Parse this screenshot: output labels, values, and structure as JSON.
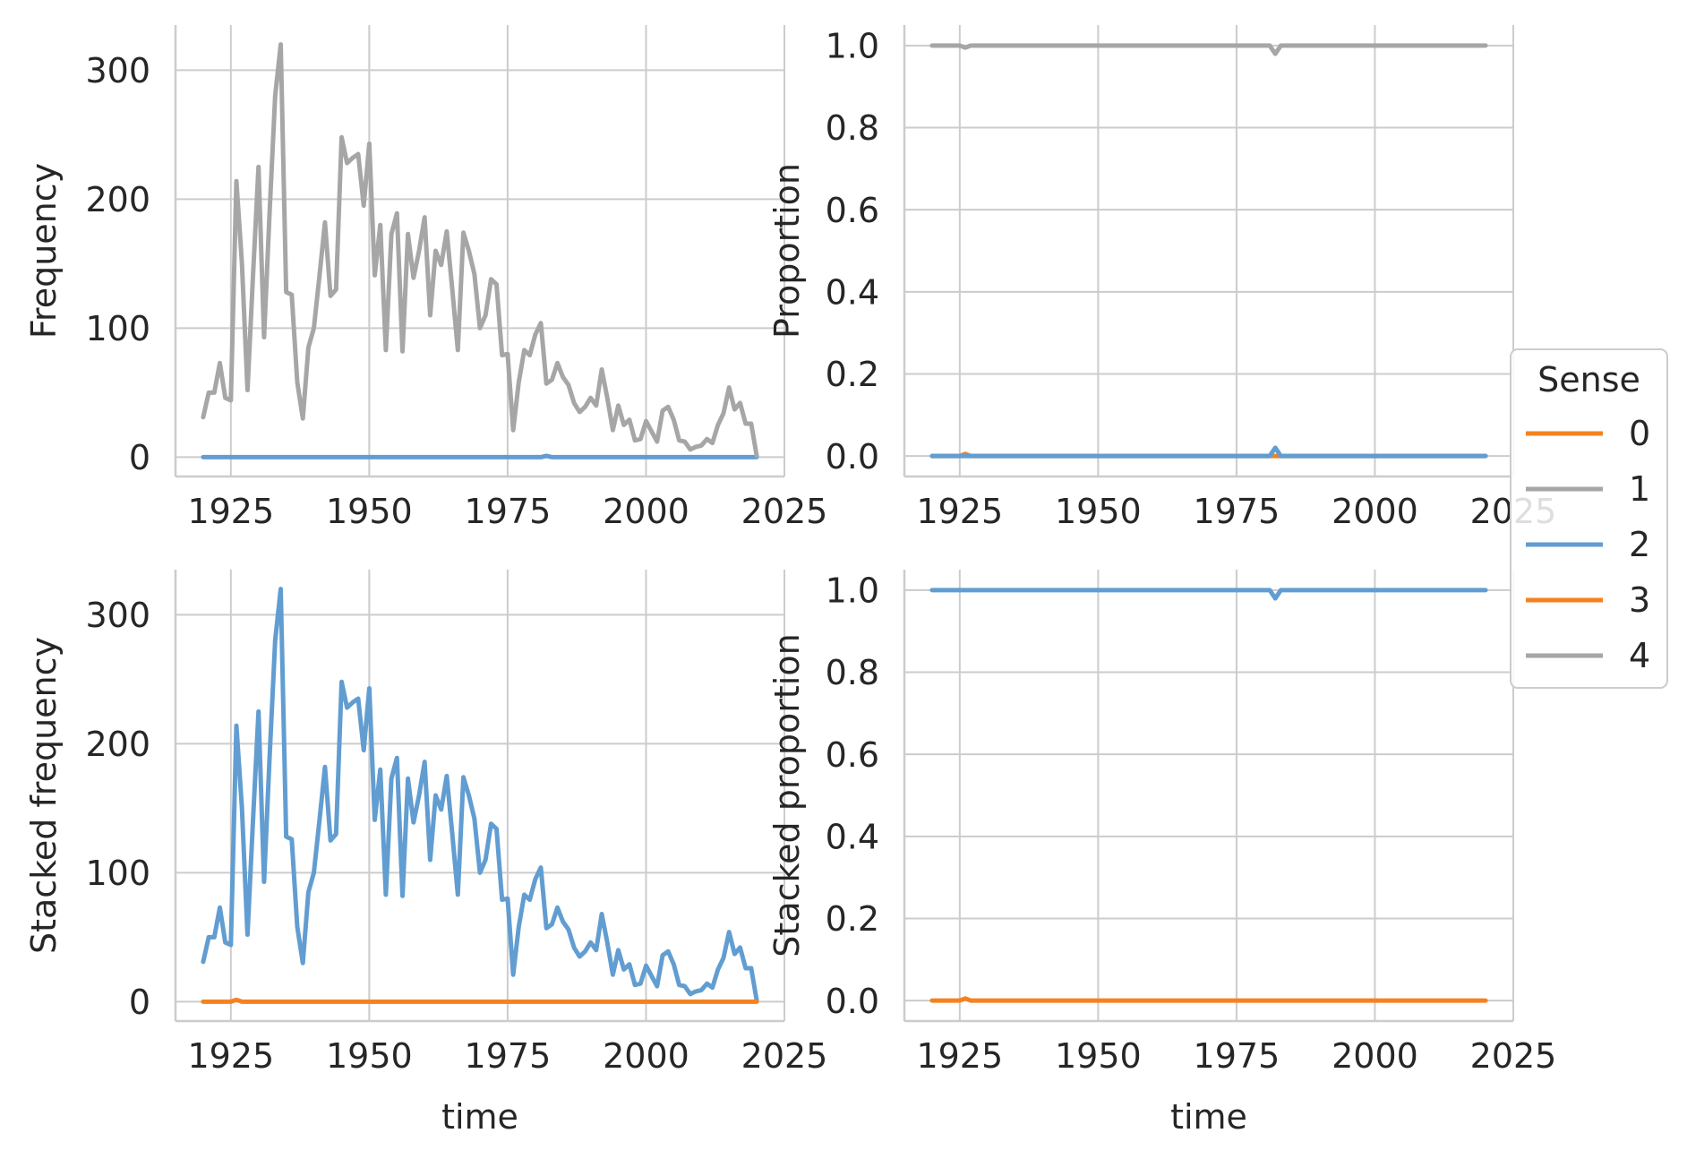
{
  "figure": {
    "background": "#ffffff",
    "grid_color": "#cccccc",
    "spine_color": "#cccccc",
    "text_color": "#262626"
  },
  "legend": {
    "title": "Sense",
    "placement": "right",
    "entries": [
      {
        "label": "0",
        "color": "#f5821f"
      },
      {
        "label": "1",
        "color": "#a6a6a6"
      },
      {
        "label": "2",
        "color": "#629dd1"
      },
      {
        "label": "3",
        "color": "#f5821f"
      },
      {
        "label": "4",
        "color": "#a6a6a6"
      }
    ]
  },
  "chart_data": [
    {
      "type": "line",
      "ylabel": "Frequency",
      "xlabel": "",
      "xlim": [
        1915,
        2025
      ],
      "ylim": [
        -15,
        335
      ],
      "xticks": [
        1925,
        1950,
        1975,
        2000,
        2025
      ],
      "yticks": [
        0,
        100,
        200,
        300
      ],
      "ytick_labels": [
        "0",
        "100",
        "200",
        "300"
      ],
      "grid": true,
      "series": [
        {
          "name": "2",
          "color": "#629dd1",
          "source": "flat_zero",
          "bump_at": 1982,
          "bump": 1
        },
        {
          "name": "1",
          "color": "#a6a6a6",
          "source": "total"
        }
      ]
    },
    {
      "type": "line",
      "ylabel": "Proportion",
      "xlabel": "",
      "xlim": [
        1915,
        2025
      ],
      "ylim": [
        -0.05,
        1.05
      ],
      "xticks": [
        1925,
        1950,
        1975,
        2000,
        2025
      ],
      "yticks": [
        0,
        0.2,
        0.4,
        0.6,
        0.8,
        1.0
      ],
      "ytick_labels": [
        "0.0",
        "0.2",
        "0.4",
        "0.6",
        "0.8",
        "1.0"
      ],
      "grid": true,
      "series": [
        {
          "name": "0",
          "color": "#f5821f",
          "source": "flat_zero",
          "bump_at": 1926,
          "bump": 0.005
        },
        {
          "name": "2",
          "color": "#629dd1",
          "source": "flat_zero",
          "bump_at": 1982,
          "bump": 0.02
        },
        {
          "name": "1",
          "color": "#a6a6a6",
          "source": "flat_one",
          "dips": [
            [
              1926,
              0.995
            ],
            [
              1982,
              0.98
            ]
          ]
        }
      ]
    },
    {
      "type": "line",
      "ylabel": "Stacked frequency",
      "xlabel": "time",
      "xlim": [
        1915,
        2025
      ],
      "ylim": [
        -15,
        335
      ],
      "xticks": [
        1925,
        1950,
        1975,
        2000,
        2025
      ],
      "yticks": [
        0,
        100,
        200,
        300
      ],
      "ytick_labels": [
        "0",
        "100",
        "200",
        "300"
      ],
      "grid": true,
      "series": [
        {
          "name": "2",
          "color": "#629dd1",
          "source": "total"
        },
        {
          "name": "0",
          "color": "#f5821f",
          "source": "flat_zero",
          "bump_at": 1926,
          "bump": 1.5
        }
      ]
    },
    {
      "type": "line",
      "ylabel": "Stacked proportion",
      "xlabel": "time",
      "xlim": [
        1915,
        2025
      ],
      "ylim": [
        -0.05,
        1.05
      ],
      "xticks": [
        1925,
        1950,
        1975,
        2000,
        2025
      ],
      "yticks": [
        0,
        0.2,
        0.4,
        0.6,
        0.8,
        1.0
      ],
      "ytick_labels": [
        "0.0",
        "0.2",
        "0.4",
        "0.6",
        "0.8",
        "1.0"
      ],
      "grid": true,
      "series": [
        {
          "name": "0",
          "color": "#f5821f",
          "source": "flat_zero",
          "bump_at": 1926,
          "bump": 0.005
        },
        {
          "name": "2",
          "color": "#629dd1",
          "source": "flat_one",
          "dips": [
            [
              1982,
              0.98
            ]
          ]
        }
      ]
    }
  ],
  "total_frequency": {
    "x": [
      1920,
      1921,
      1922,
      1923,
      1924,
      1925,
      1926,
      1927,
      1928,
      1929,
      1930,
      1931,
      1932,
      1933,
      1934,
      1935,
      1936,
      1937,
      1938,
      1939,
      1940,
      1941,
      1942,
      1943,
      1944,
      1945,
      1946,
      1947,
      1948,
      1949,
      1950,
      1951,
      1952,
      1953,
      1954,
      1955,
      1956,
      1957,
      1958,
      1959,
      1960,
      1961,
      1962,
      1963,
      1964,
      1965,
      1966,
      1967,
      1968,
      1969,
      1970,
      1971,
      1972,
      1973,
      1974,
      1975,
      1976,
      1977,
      1978,
      1979,
      1980,
      1981,
      1982,
      1983,
      1984,
      1985,
      1986,
      1987,
      1988,
      1989,
      1990,
      1991,
      1992,
      1993,
      1994,
      1995,
      1996,
      1997,
      1998,
      1999,
      2000,
      2001,
      2002,
      2003,
      2004,
      2005,
      2006,
      2007,
      2008,
      2009,
      2010,
      2011,
      2012,
      2013,
      2014,
      2015,
      2016,
      2017,
      2018,
      2019,
      2020
    ],
    "y": [
      31,
      50,
      50,
      73,
      46,
      44,
      214,
      150,
      52,
      140,
      225,
      93,
      190,
      280,
      320,
      128,
      126,
      58,
      30,
      85,
      100,
      140,
      182,
      125,
      130,
      248,
      228,
      232,
      235,
      195,
      243,
      141,
      180,
      83,
      173,
      189,
      82,
      173,
      139,
      160,
      186,
      110,
      160,
      149,
      175,
      130,
      83,
      174,
      160,
      142,
      100,
      110,
      138,
      134,
      79,
      80,
      21,
      58,
      83,
      79,
      95,
      104,
      57,
      60,
      73,
      62,
      56,
      42,
      35,
      39,
      46,
      40,
      68,
      46,
      21,
      40,
      25,
      29,
      13,
      14,
      28,
      20,
      12,
      36,
      39,
      29,
      13,
      12,
      6,
      8,
      9,
      14,
      11,
      25,
      34,
      54,
      37,
      42,
      26,
      26,
      1
    ]
  }
}
